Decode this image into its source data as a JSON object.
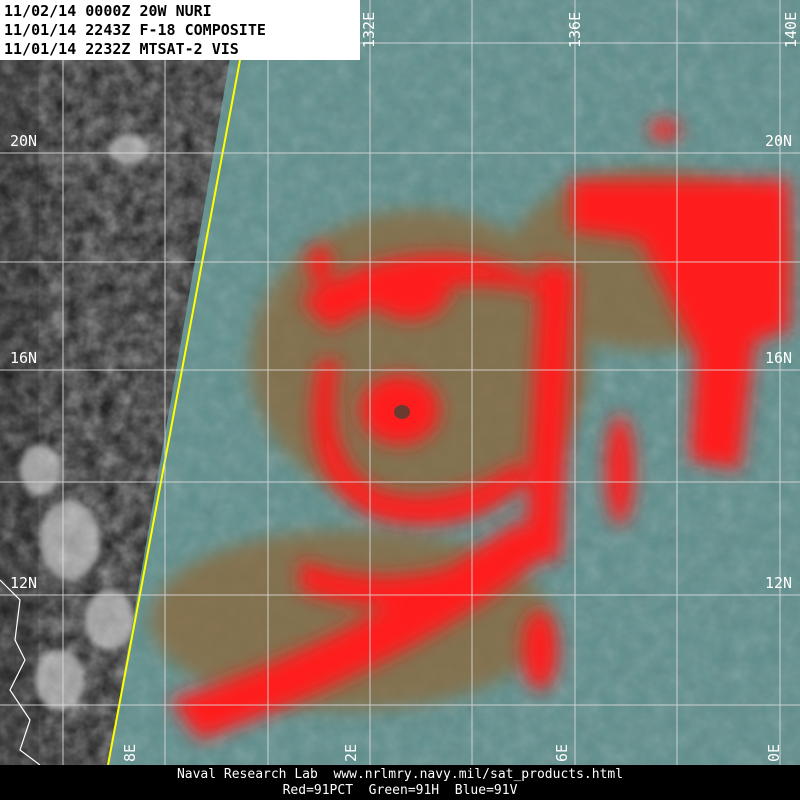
{
  "header": {
    "lines": [
      "11/02/14 0000Z 20W NURI",
      "11/01/14 2243Z F-18 COMPOSITE",
      "11/01/14 2232Z MTSAT-2 VIS"
    ]
  },
  "grid_labels": {
    "top": [
      "132E",
      "136E",
      "140E"
    ],
    "left": [
      "20N",
      "16N",
      "12N"
    ],
    "right": [
      "20N",
      "16N",
      "12N"
    ],
    "bottom": [
      "8E",
      "2E",
      "6E",
      "0E"
    ]
  },
  "footer": {
    "credit": "Naval Research Lab  www.nrlmry.navy.mil/sat_products.html",
    "channels": "Red=91PCT  Green=91H  Blue=91V"
  }
}
